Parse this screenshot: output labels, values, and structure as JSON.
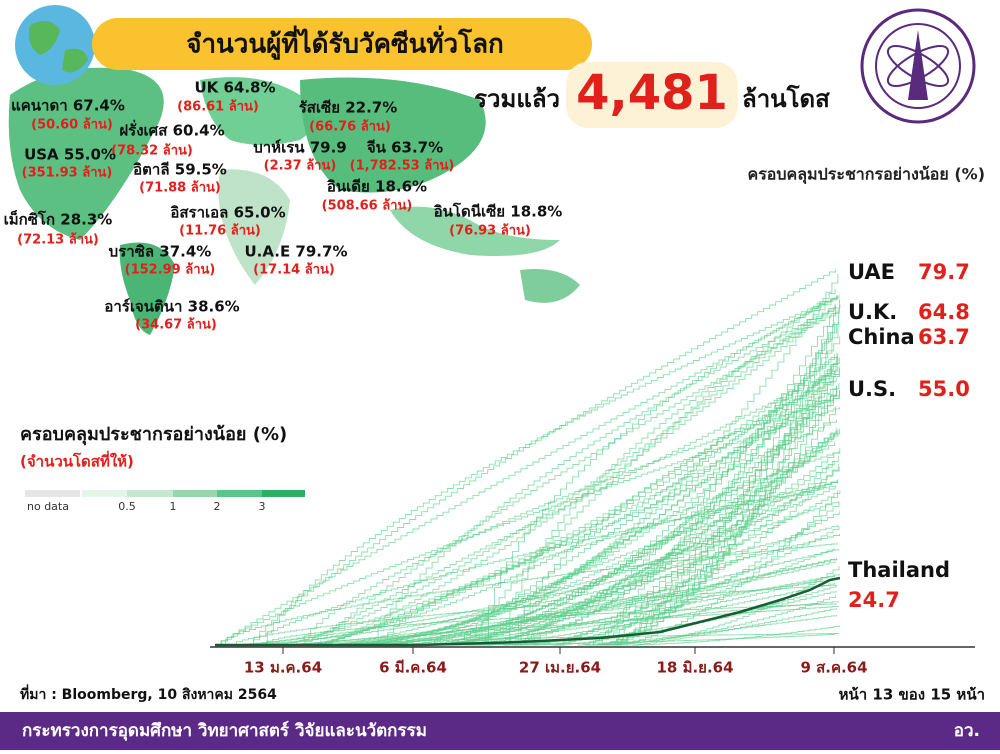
{
  "header": {
    "title": "จำนวนผู้ที่ได้รับวัคซีนทั่วโลก",
    "total_prefix": "รวมแล้ว",
    "total": "4,481",
    "total_unit": "ล้านโดส"
  },
  "coverage_caption": "ครอบคลุมประชากรอย่างน้อย (%)",
  "map_labels": [
    {
      "text": "UK 64.8%",
      "doses": "(86.61 ล้าน)"
    },
    {
      "text": "แคนาดา 67.4%",
      "doses": "(50.60 ล้าน)"
    },
    {
      "text": "ฝรั่งเศส 60.4%",
      "doses": "(78.32 ล้าน)"
    },
    {
      "text": "อิตาลี 59.5%",
      "doses": "(71.88 ล้าน)"
    },
    {
      "text": "USA 55.0%",
      "doses": "(351.93 ล้าน)"
    },
    {
      "text": "เม็กซิโก 28.3%",
      "doses": "(72.13 ล้าน)"
    },
    {
      "text": "บาห์เรน 79.9",
      "doses": "(2.37 ล้าน)"
    },
    {
      "text": "รัสเซีย 22.7%",
      "doses": "(66.76 ล้าน)"
    },
    {
      "text": "จีน 63.7%",
      "doses": "(1,782.53 ล้าน)"
    },
    {
      "text": "อินเดีย 18.6%",
      "doses": "(508.66 ล้าน)"
    },
    {
      "text": "อิสราเอล 65.0%",
      "doses": "(11.76 ล้าน)"
    },
    {
      "text": "บราซิล 37.4%",
      "doses": "(152.99 ล้าน)"
    },
    {
      "text": "U.A.E 79.7%",
      "doses": "(17.14 ล้าน)"
    },
    {
      "text": "อินโดนีเซีย 18.8%",
      "doses": "(76.93 ล้าน)"
    },
    {
      "text": "อาร์เจนตินา 38.6%",
      "doses": "(34.67 ล้าน)"
    }
  ],
  "legend": {
    "title": "ครอบคลุมประชากรอย่างน้อย (%)",
    "subtitle": "(จำนวนโดสที่ให้)",
    "labels": [
      "no data",
      "0.5",
      "1",
      "2",
      "3"
    ]
  },
  "chart": {
    "x_labels": [
      "13 ม.ค.64",
      "6 มี.ค.64",
      "27 เม.ย.64",
      "18 มิ.ย.64",
      "9 ส.ค.64"
    ],
    "end_labels": [
      {
        "name": "UAE",
        "value": "79.7"
      },
      {
        "name": "U.K.",
        "value": "64.8"
      },
      {
        "name": "China",
        "value": "63.7"
      },
      {
        "name": "U.S.",
        "value": "55.0"
      },
      {
        "name": "Thailand",
        "value": "24.7"
      }
    ]
  },
  "source": "ที่มา : Bloomberg, 10 สิงหาคม 2564",
  "page": "หน้า 13 ของ 15 หน้า",
  "footer": {
    "ministry": "กระทรวงการอุดมศึกษา วิทยาศาสตร์ วิจัยและนวัตกรรม",
    "abbr": "อว."
  }
}
